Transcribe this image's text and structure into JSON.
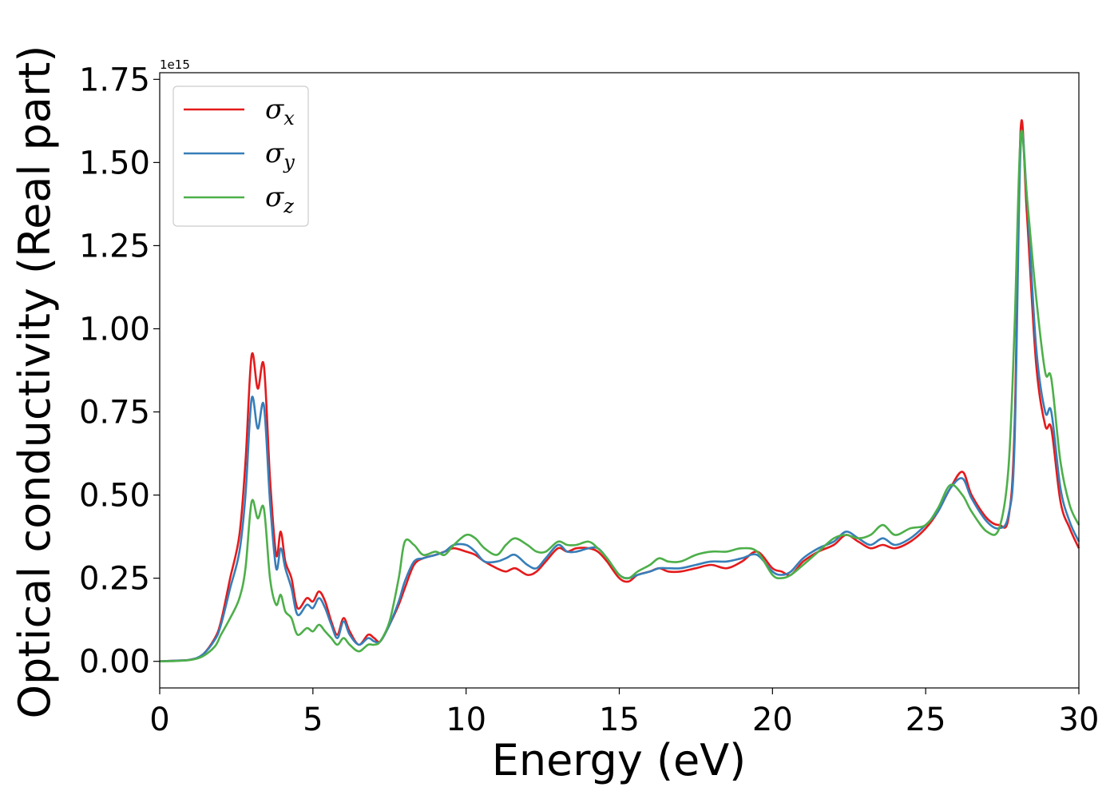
{
  "chart_data": {
    "type": "line",
    "xlabel": "Energy (eV)",
    "ylabel": "Optical conductivity (Real part)",
    "y_offset_text": "1e15",
    "xlim": [
      0,
      30
    ],
    "ylim": [
      -0.08,
      1.77
    ],
    "xticks": [
      0,
      5,
      10,
      15,
      20,
      25,
      30
    ],
    "xtick_labels": [
      "0",
      "5",
      "10",
      "15",
      "20",
      "25",
      "30"
    ],
    "yticks": [
      0,
      0.25,
      0.5,
      0.75,
      1.0,
      1.25,
      1.5,
      1.75
    ],
    "ytick_labels": [
      "0.00",
      "0.25",
      "0.50",
      "0.75",
      "1.00",
      "1.25",
      "1.50",
      "1.75"
    ],
    "grid": false,
    "legend_position": "top-left",
    "x": [
      0,
      0.5,
      1.0,
      1.4,
      1.8,
      2.0,
      2.3,
      2.6,
      2.8,
      3.0,
      3.2,
      3.4,
      3.6,
      3.8,
      3.95,
      4.1,
      4.3,
      4.5,
      4.8,
      5.0,
      5.2,
      5.4,
      5.6,
      5.8,
      6.0,
      6.2,
      6.5,
      6.8,
      7.0,
      7.2,
      7.5,
      7.8,
      8.0,
      8.3,
      8.6,
      9.0,
      9.3,
      9.6,
      10.0,
      10.3,
      10.6,
      11.0,
      11.3,
      11.6,
      12.0,
      12.3,
      12.6,
      13.0,
      13.3,
      13.6,
      14.0,
      14.3,
      14.6,
      15.0,
      15.3,
      15.6,
      16.0,
      16.3,
      16.6,
      17.0,
      17.5,
      18.0,
      18.5,
      19.0,
      19.5,
      20.0,
      20.3,
      20.6,
      21.0,
      21.5,
      22.0,
      22.4,
      22.8,
      23.2,
      23.6,
      24.0,
      24.5,
      25.0,
      25.4,
      25.8,
      26.2,
      26.5,
      27.0,
      27.4,
      27.7,
      27.9,
      28.1,
      28.3,
      28.6,
      28.9,
      29.1,
      29.4,
      29.7,
      30.0
    ],
    "series": [
      {
        "name": "σ",
        "subscript": "x",
        "color": "#e41a1c",
        "values": [
          0,
          0.002,
          0.005,
          0.02,
          0.07,
          0.12,
          0.25,
          0.38,
          0.6,
          0.92,
          0.82,
          0.89,
          0.55,
          0.32,
          0.39,
          0.3,
          0.25,
          0.16,
          0.19,
          0.18,
          0.21,
          0.18,
          0.12,
          0.08,
          0.13,
          0.09,
          0.05,
          0.08,
          0.07,
          0.06,
          0.11,
          0.17,
          0.22,
          0.29,
          0.31,
          0.32,
          0.33,
          0.34,
          0.33,
          0.32,
          0.3,
          0.28,
          0.27,
          0.28,
          0.26,
          0.27,
          0.3,
          0.34,
          0.33,
          0.34,
          0.34,
          0.33,
          0.3,
          0.25,
          0.24,
          0.26,
          0.27,
          0.28,
          0.27,
          0.27,
          0.28,
          0.29,
          0.28,
          0.3,
          0.33,
          0.28,
          0.27,
          0.26,
          0.3,
          0.33,
          0.35,
          0.38,
          0.36,
          0.34,
          0.35,
          0.34,
          0.36,
          0.4,
          0.45,
          0.52,
          0.57,
          0.5,
          0.43,
          0.41,
          0.43,
          0.7,
          1.6,
          1.35,
          0.9,
          0.71,
          0.7,
          0.48,
          0.4,
          0.34
        ]
      },
      {
        "name": "σ",
        "subscript": "y",
        "color": "#377eb8",
        "values": [
          0,
          0.002,
          0.005,
          0.02,
          0.065,
          0.11,
          0.22,
          0.33,
          0.5,
          0.79,
          0.7,
          0.77,
          0.48,
          0.28,
          0.34,
          0.28,
          0.22,
          0.14,
          0.17,
          0.16,
          0.19,
          0.16,
          0.11,
          0.07,
          0.12,
          0.08,
          0.05,
          0.07,
          0.06,
          0.06,
          0.11,
          0.18,
          0.24,
          0.3,
          0.31,
          0.32,
          0.33,
          0.35,
          0.35,
          0.33,
          0.3,
          0.3,
          0.31,
          0.32,
          0.29,
          0.28,
          0.31,
          0.35,
          0.33,
          0.33,
          0.34,
          0.34,
          0.31,
          0.26,
          0.25,
          0.26,
          0.27,
          0.28,
          0.28,
          0.28,
          0.29,
          0.3,
          0.3,
          0.31,
          0.32,
          0.27,
          0.26,
          0.27,
          0.31,
          0.34,
          0.36,
          0.39,
          0.37,
          0.35,
          0.37,
          0.35,
          0.37,
          0.41,
          0.45,
          0.52,
          0.55,
          0.49,
          0.42,
          0.4,
          0.44,
          0.65,
          1.55,
          1.4,
          0.95,
          0.75,
          0.75,
          0.52,
          0.42,
          0.36
        ]
      },
      {
        "name": "σ",
        "subscript": "z",
        "color": "#4daf4a",
        "values": [
          0,
          0.001,
          0.004,
          0.015,
          0.045,
          0.08,
          0.13,
          0.19,
          0.28,
          0.48,
          0.43,
          0.46,
          0.25,
          0.17,
          0.2,
          0.15,
          0.13,
          0.08,
          0.1,
          0.09,
          0.11,
          0.09,
          0.07,
          0.05,
          0.07,
          0.05,
          0.03,
          0.05,
          0.05,
          0.06,
          0.12,
          0.25,
          0.36,
          0.35,
          0.32,
          0.33,
          0.32,
          0.35,
          0.38,
          0.37,
          0.34,
          0.32,
          0.35,
          0.37,
          0.35,
          0.33,
          0.33,
          0.36,
          0.35,
          0.35,
          0.36,
          0.34,
          0.31,
          0.26,
          0.25,
          0.27,
          0.29,
          0.31,
          0.3,
          0.3,
          0.32,
          0.33,
          0.33,
          0.34,
          0.33,
          0.26,
          0.25,
          0.26,
          0.29,
          0.33,
          0.37,
          0.38,
          0.37,
          0.38,
          0.41,
          0.38,
          0.4,
          0.41,
          0.46,
          0.53,
          0.5,
          0.45,
          0.39,
          0.4,
          0.58,
          1.0,
          1.58,
          1.4,
          1.1,
          0.87,
          0.85,
          0.6,
          0.47,
          0.41
        ]
      }
    ]
  }
}
